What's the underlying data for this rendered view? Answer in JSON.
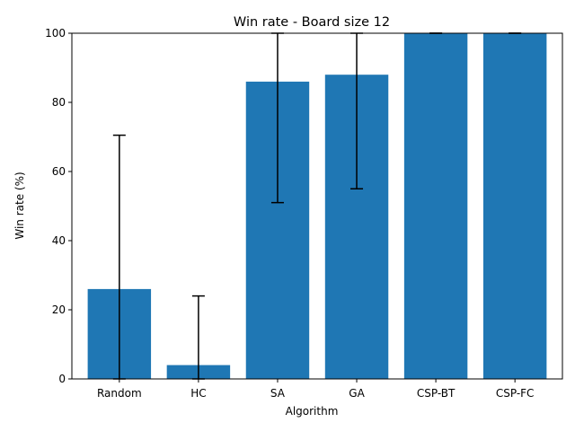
{
  "chart_data": {
    "type": "bar",
    "title": "Win rate - Board size 12",
    "xlabel": "Algorithm",
    "ylabel": "Win rate (%)",
    "categories": [
      "Random",
      "HC",
      "SA",
      "GA",
      "CSP-BT",
      "CSP-FC"
    ],
    "values": [
      26,
      4,
      86,
      88,
      100,
      100
    ],
    "error_bars": [
      {
        "low": 0,
        "high": 70.5
      },
      {
        "low": 0,
        "high": 24
      },
      {
        "low": 51,
        "high": 100
      },
      {
        "low": 55,
        "high": 100
      },
      {
        "low": 100,
        "high": 100
      },
      {
        "low": 100,
        "high": 100
      }
    ],
    "ylim": [
      0,
      100
    ],
    "yticks": [
      0,
      20,
      40,
      60,
      80,
      100
    ],
    "grid": false,
    "colors": {
      "bar": "#1f77b4",
      "error": "#000000",
      "axis": "#000000"
    }
  }
}
